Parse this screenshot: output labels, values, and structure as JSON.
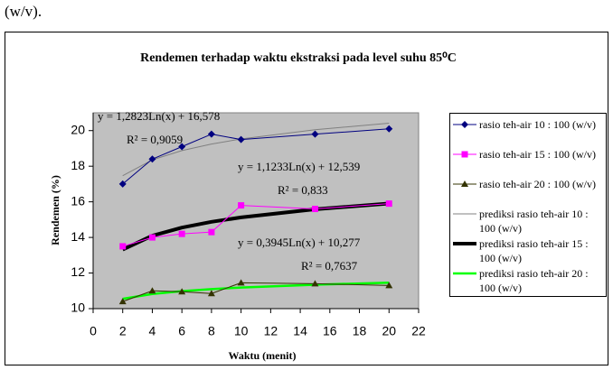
{
  "preceding_text": "(w/v).",
  "chart_data": {
    "type": "line",
    "title": "Rendemen terhadap waktu ekstraksi pada level suhu 85⁰C",
    "x_label": "Waktu (menit)",
    "y_label": "Rendemen (%)",
    "x": [
      2,
      4,
      6,
      8,
      10,
      15,
      20
    ],
    "xlim": [
      0,
      22
    ],
    "xticks": [
      0,
      2,
      4,
      6,
      8,
      10,
      12,
      14,
      16,
      18,
      20,
      22
    ],
    "ylim": [
      10,
      21
    ],
    "yticks": [
      10,
      12,
      14,
      16,
      18,
      20
    ],
    "plot_background": "#c0c0c0",
    "series": [
      {
        "name": "rasio teh-air 10 : 100 (w/v)",
        "color": "#000080",
        "marker": "diamond",
        "line_width": 1,
        "values": [
          17.0,
          18.4,
          19.1,
          19.8,
          19.5,
          19.8,
          20.1
        ]
      },
      {
        "name": "rasio teh-air 15 : 100 (w/v)",
        "color": "#ff00ff",
        "marker": "square",
        "line_width": 1,
        "values": [
          13.5,
          14.0,
          14.2,
          14.3,
          15.8,
          15.6,
          15.9
        ]
      },
      {
        "name": "rasio teh-air 20 : 100 (w/v)",
        "color": "#333300",
        "marker": "triangle",
        "line_width": 1,
        "values": [
          10.4,
          11.0,
          10.95,
          10.85,
          11.45,
          11.4,
          11.3
        ]
      },
      {
        "name": "prediksi rasio teh-air 10 : 100 (w/v)",
        "color": "#808080",
        "line_width": 1,
        "values": [
          17.467,
          18.356,
          18.876,
          19.245,
          19.531,
          20.051,
          20.42
        ]
      },
      {
        "name": "prediksi rasio teh-air 15 : 100 (w/v)",
        "color": "#000000",
        "line_width": 4,
        "values": [
          13.318,
          14.096,
          14.552,
          14.875,
          15.126,
          15.581,
          15.904
        ]
      },
      {
        "name": "prediksi rasio teh-air 20 : 100 (w/v)",
        "color": "#00ff00",
        "line_width": 2.5,
        "values": [
          10.55,
          10.824,
          10.984,
          11.097,
          11.185,
          11.345,
          11.459
        ]
      }
    ],
    "annotations": [
      "y = 1,2823Ln(x) + 16,578",
      "R² = 0,9059",
      "y = 1,1233Ln(x) + 12,539",
      "R² = 0,833",
      "y = 0,3945Ln(x) + 10,277",
      "R² = 0,7637"
    ]
  }
}
